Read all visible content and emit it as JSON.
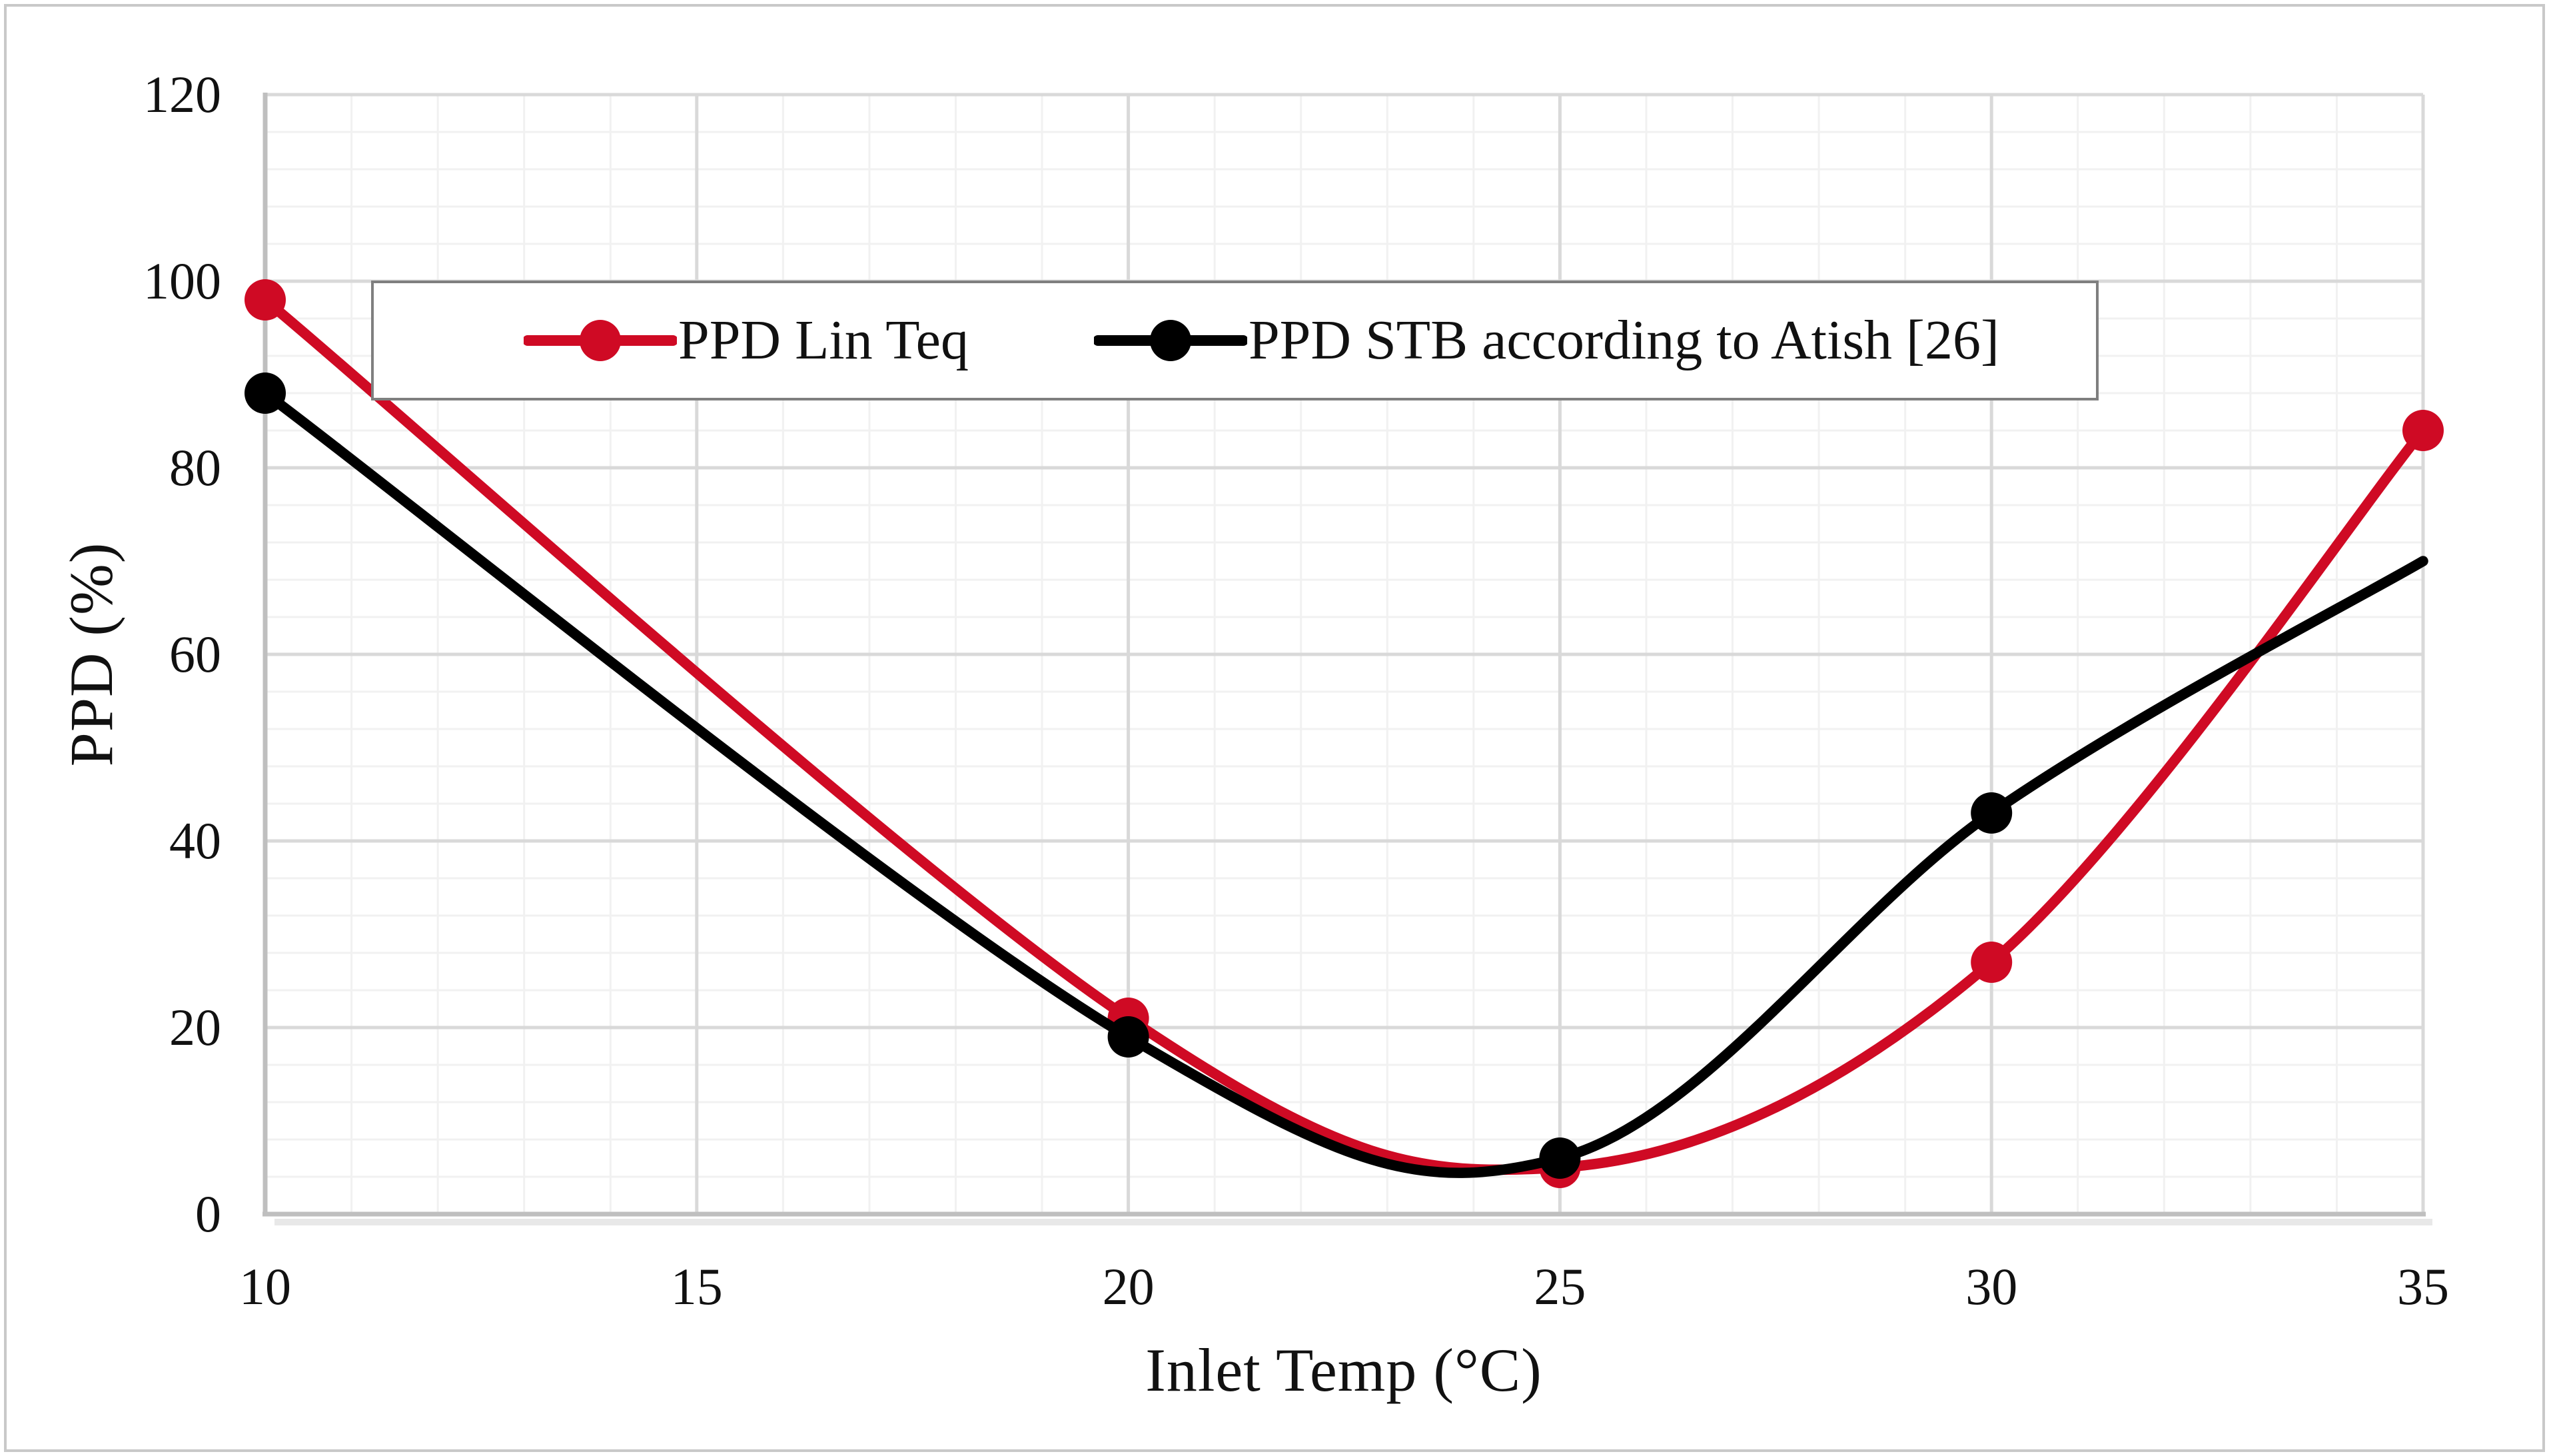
{
  "chart_data": {
    "type": "line",
    "title": "",
    "xlabel": "Inlet Temp (°C)",
    "ylabel": "PPD (%)",
    "xlim": [
      10,
      35
    ],
    "ylim": [
      0,
      120
    ],
    "x_major_unit": 5,
    "x_minor_unit": 1,
    "y_major_unit": 20,
    "y_minor_unit": 4,
    "x_ticks": [
      "10",
      "15",
      "20",
      "25",
      "30",
      "35"
    ],
    "y_ticks": [
      "0",
      "20",
      "40",
      "60",
      "80",
      "100",
      "120"
    ],
    "grid": "major and minor gridlines, both axes",
    "legend_position": "top center, inside plot area, boxed",
    "series": [
      {
        "name": "PPD Lin Teq",
        "color": "#CF0A24",
        "x": [
          10,
          20,
          25,
          30,
          35
        ],
        "values": [
          98,
          21,
          5,
          27,
          84
        ],
        "markers": [
          true,
          true,
          true,
          true,
          true
        ],
        "style": "smooth line with circle markers"
      },
      {
        "name": "PPD STB according to Atish [26]",
        "color": "#000000",
        "x": [
          10,
          20,
          25,
          30,
          35
        ],
        "values": [
          88,
          19,
          6,
          43,
          70
        ],
        "markers": [
          true,
          true,
          true,
          true,
          false
        ],
        "style": "smooth line with circle markers"
      }
    ]
  },
  "axes": {
    "x_title": "Inlet Temp (°C)",
    "y_title": "PPD (%)"
  },
  "legend": {
    "items": [
      {
        "label": "PPD Lin Teq",
        "color": "#CF0A24"
      },
      {
        "label": "PPD STB according to Atish [26]",
        "color": "#000000"
      }
    ]
  },
  "colors": {
    "series_red": "#CF0A24",
    "series_black": "#000000",
    "grid_major": "#D9D9D9",
    "grid_minor": "#F1F1F1",
    "axis_line": "#BFBFBF",
    "legend_border": "#7F7F7F",
    "chart_border": "#C9C9C9",
    "background": "#FFFFFF",
    "text": "#111111"
  }
}
